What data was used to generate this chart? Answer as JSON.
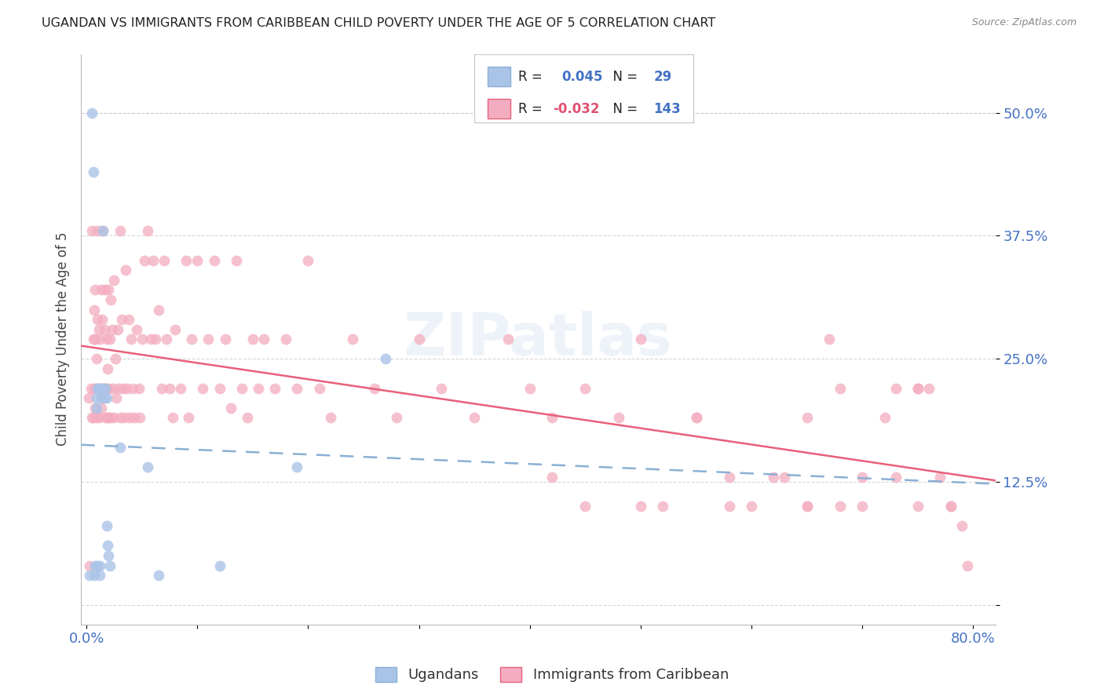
{
  "title": "UGANDAN VS IMMIGRANTS FROM CARIBBEAN CHILD POVERTY UNDER THE AGE OF 5 CORRELATION CHART",
  "source": "Source: ZipAtlas.com",
  "ylabel": "Child Poverty Under the Age of 5",
  "ytick_values": [
    0.0,
    0.125,
    0.25,
    0.375,
    0.5
  ],
  "ytick_labels": [
    "",
    "12.5%",
    "25.0%",
    "37.5%",
    "50.0%"
  ],
  "xlim": [
    -0.005,
    0.82
  ],
  "ylim": [
    -0.02,
    0.56
  ],
  "watermark": "ZIPatlas",
  "r1": 0.045,
  "n1": 29,
  "r2": -0.032,
  "n2": 143,
  "ugandan_color": "#aac4e8",
  "caribbean_color": "#f4adc0",
  "ugandan_line_color": "#7badd4",
  "caribbean_line_color": "#e8607a",
  "bg_color": "#ffffff",
  "title_color": "#222222",
  "axis_label_color": "#4472c4",
  "grid_color": "#cccccc",
  "ugandan_x": [
    0.003,
    0.005,
    0.006,
    0.007,
    0.008,
    0.009,
    0.009,
    0.01,
    0.01,
    0.011,
    0.012,
    0.012,
    0.013,
    0.014,
    0.015,
    0.015,
    0.016,
    0.017,
    0.018,
    0.018,
    0.019,
    0.02,
    0.021,
    0.03,
    0.055,
    0.065,
    0.12,
    0.19,
    0.27
  ],
  "ugandan_y": [
    0.03,
    0.5,
    0.44,
    0.03,
    0.04,
    0.21,
    0.2,
    0.22,
    0.04,
    0.22,
    0.04,
    0.03,
    0.21,
    0.22,
    0.38,
    0.22,
    0.21,
    0.22,
    0.21,
    0.08,
    0.06,
    0.05,
    0.04,
    0.16,
    0.14,
    0.03,
    0.04,
    0.14,
    0.25
  ],
  "carib_x_low": [
    0.002,
    0.003,
    0.004,
    0.005,
    0.005,
    0.006,
    0.006,
    0.007,
    0.007,
    0.008,
    0.008,
    0.008,
    0.009,
    0.009,
    0.01,
    0.01,
    0.01,
    0.011,
    0.011,
    0.012,
    0.012,
    0.013,
    0.013,
    0.014,
    0.014,
    0.015,
    0.015,
    0.016,
    0.016,
    0.017,
    0.017,
    0.018,
    0.018,
    0.019,
    0.019,
    0.02,
    0.02,
    0.02,
    0.021,
    0.022,
    0.022,
    0.023,
    0.024,
    0.025,
    0.025,
    0.026,
    0.027,
    0.028,
    0.029,
    0.03,
    0.03,
    0.032,
    0.033,
    0.034,
    0.035,
    0.036,
    0.038,
    0.039,
    0.04,
    0.042,
    0.043,
    0.045,
    0.047,
    0.048,
    0.05
  ],
  "carib_y_low": [
    0.21,
    0.04,
    0.22,
    0.38,
    0.19,
    0.27,
    0.19,
    0.3,
    0.22,
    0.32,
    0.27,
    0.2,
    0.25,
    0.19,
    0.38,
    0.29,
    0.22,
    0.28,
    0.19,
    0.27,
    0.22,
    0.32,
    0.2,
    0.29,
    0.22,
    0.38,
    0.21,
    0.28,
    0.22,
    0.32,
    0.19,
    0.27,
    0.22,
    0.24,
    0.19,
    0.32,
    0.22,
    0.19,
    0.27,
    0.31,
    0.19,
    0.28,
    0.22,
    0.33,
    0.19,
    0.25,
    0.21,
    0.28,
    0.22,
    0.38,
    0.19,
    0.29,
    0.22,
    0.19,
    0.34,
    0.22,
    0.29,
    0.19,
    0.27,
    0.22,
    0.19,
    0.28,
    0.22,
    0.19,
    0.27
  ],
  "carib_x_mid": [
    0.052,
    0.055,
    0.058,
    0.06,
    0.062,
    0.065,
    0.068,
    0.07,
    0.072,
    0.075,
    0.078,
    0.08,
    0.085,
    0.09,
    0.092,
    0.095,
    0.1,
    0.105,
    0.11,
    0.115,
    0.12,
    0.125,
    0.13,
    0.135,
    0.14,
    0.145,
    0.15,
    0.155,
    0.16,
    0.17,
    0.18,
    0.19,
    0.2,
    0.21,
    0.22,
    0.24,
    0.26,
    0.28,
    0.3,
    0.32,
    0.35,
    0.38,
    0.4,
    0.42,
    0.45,
    0.48,
    0.5
  ],
  "carib_y_mid": [
    0.35,
    0.38,
    0.27,
    0.35,
    0.27,
    0.3,
    0.22,
    0.35,
    0.27,
    0.22,
    0.19,
    0.28,
    0.22,
    0.35,
    0.19,
    0.27,
    0.35,
    0.22,
    0.27,
    0.35,
    0.22,
    0.27,
    0.2,
    0.35,
    0.22,
    0.19,
    0.27,
    0.22,
    0.27,
    0.22,
    0.27,
    0.22,
    0.35,
    0.22,
    0.19,
    0.27,
    0.22,
    0.19,
    0.27,
    0.22,
    0.19,
    0.27,
    0.22,
    0.19,
    0.22,
    0.19,
    0.27
  ],
  "carib_x_high": [
    0.52,
    0.55,
    0.58,
    0.6,
    0.62,
    0.65,
    0.67,
    0.68,
    0.7,
    0.72,
    0.73,
    0.75,
    0.76,
    0.77,
    0.78,
    0.79,
    0.795,
    0.75,
    0.65,
    0.55,
    0.45,
    0.42,
    0.58,
    0.63,
    0.68,
    0.73,
    0.78,
    0.65,
    0.7,
    0.75,
    0.5
  ],
  "carib_y_high": [
    0.1,
    0.19,
    0.13,
    0.1,
    0.13,
    0.1,
    0.27,
    0.22,
    0.1,
    0.19,
    0.22,
    0.1,
    0.22,
    0.13,
    0.1,
    0.08,
    0.04,
    0.22,
    0.1,
    0.19,
    0.1,
    0.13,
    0.1,
    0.13,
    0.1,
    0.13,
    0.1,
    0.19,
    0.13,
    0.22,
    0.1
  ]
}
